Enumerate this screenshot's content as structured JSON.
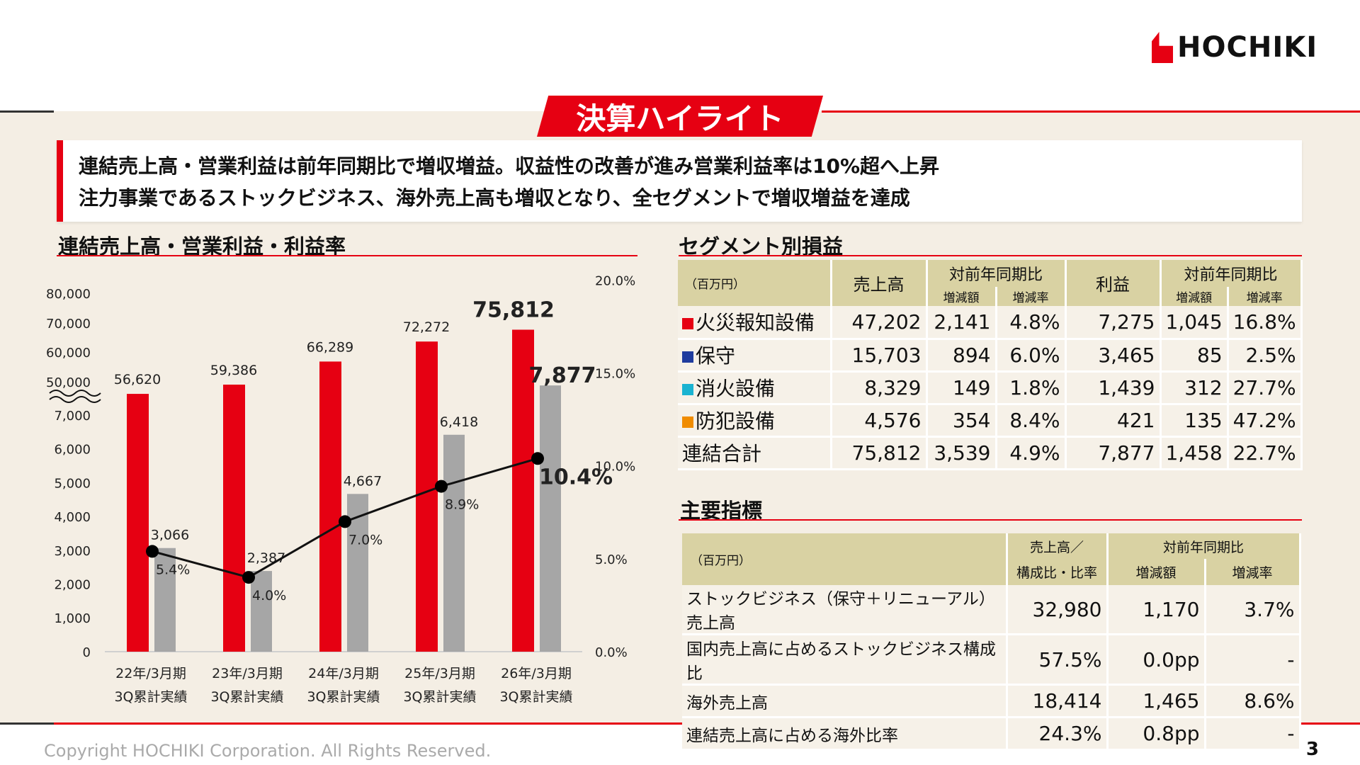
{
  "logo": {
    "text": "HOCHIKI"
  },
  "banner": {
    "title": "決算ハイライト"
  },
  "message": {
    "line1": "連結売上高・営業利益は前年同期比で増収増益。収益性の改善が進み営業利益率は10%超へ上昇",
    "line2": "注力事業であるストックビジネス、海外売上高も増収となり、全セグメントで増収増益を達成"
  },
  "chart_section": {
    "title": "連結売上高・営業利益・利益率"
  },
  "segment_section": {
    "title": "セグメント別損益"
  },
  "kpi_section": {
    "title": "主要指標"
  },
  "colors": {
    "red": "#e60012",
    "gray": "#a6a6a6",
    "line": "#111111",
    "header": "#d9d2a3",
    "bg": "#f4eee4"
  },
  "chart_data": {
    "type": "bar+line",
    "categories": [
      [
        "22年/3月期",
        "3Q累計実績"
      ],
      [
        "23年/3月期",
        "3Q累計実績"
      ],
      [
        "24年/3月期",
        "3Q累計実績"
      ],
      [
        "25年/3月期",
        "3Q累計実績"
      ],
      [
        "26年/3月期",
        "3Q累計実績"
      ]
    ],
    "series": [
      {
        "kind": "bar",
        "axis": "left-upper",
        "color": "#e60012",
        "values": [
          56620,
          59386,
          66289,
          72272,
          75812
        ],
        "labels": [
          "56,620",
          "59,386",
          "66,289",
          "72,272",
          "75,812"
        ]
      },
      {
        "kind": "bar",
        "axis": "left-lower",
        "color": "#a6a6a6",
        "values": [
          3066,
          2387,
          4667,
          6418,
          7877
        ],
        "labels": [
          "3,066",
          "2,387",
          "4,667",
          "6,418",
          "7,877"
        ]
      },
      {
        "kind": "line",
        "axis": "right",
        "color": "#111111",
        "values": [
          5.4,
          4.0,
          7.0,
          8.9,
          10.4
        ],
        "labels": [
          "5.4%",
          "4.0%",
          "7.0%",
          "8.9%",
          "10.4%"
        ]
      }
    ],
    "left_axis_upper_ticks": [
      "80,000",
      "70,000",
      "60,000",
      "50,000"
    ],
    "left_axis_lower_ticks": [
      "7,000",
      "6,000",
      "5,000",
      "4,000",
      "3,000",
      "2,000",
      "1,000",
      "0"
    ],
    "right_axis_ticks": [
      "20.0%",
      "15.0%",
      "10.0%",
      "5.0%",
      "0.0%"
    ],
    "left_axis_break": true,
    "ylim_lower": [
      0,
      7000
    ],
    "ylim_right": [
      0,
      20
    ],
    "grid": false
  },
  "segment_table": {
    "unit": "（百万円）",
    "headers": {
      "sales": "売上高",
      "yoy": "対前年同期比",
      "diff": "増減額",
      "rate": "増減率",
      "profit": "利益"
    },
    "rows": [
      {
        "name": "火災報知設備",
        "color": "#e60012",
        "cells": [
          "47,202",
          "2,141",
          "4.8%",
          "7,275",
          "1,045",
          "16.8%"
        ]
      },
      {
        "name": "保守",
        "color": "#1f3c9e",
        "cells": [
          "15,703",
          "894",
          "6.0%",
          "3,465",
          "85",
          "2.5%"
        ]
      },
      {
        "name": "消火設備",
        "color": "#1ab3d1",
        "cells": [
          "8,329",
          "149",
          "1.8%",
          "1,439",
          "312",
          "27.7%"
        ]
      },
      {
        "name": "防犯設備",
        "color": "#f08c00",
        "cells": [
          "4,576",
          "354",
          "8.4%",
          "421",
          "135",
          "47.2%"
        ]
      },
      {
        "name": "連結合計",
        "color": null,
        "cells": [
          "75,812",
          "3,539",
          "4.9%",
          "7,877",
          "1,458",
          "22.7%"
        ]
      }
    ]
  },
  "kpi_table": {
    "unit": "（百万円）",
    "headers": {
      "col1a": "売上高／",
      "col1b": "構成比・比率",
      "yoy": "対前年同期比",
      "diff": "増減額",
      "rate": "増減率"
    },
    "rows": [
      {
        "name": "ストックビジネス（保守＋リニューアル）売上高",
        "cells": [
          "32,980",
          "1,170",
          "3.7%"
        ]
      },
      {
        "name": "国内売上高に占めるストックビジネス構成比",
        "cells": [
          "57.5%",
          "0.0pp",
          "-"
        ]
      },
      {
        "name": "海外売上高",
        "cells": [
          "18,414",
          "1,465",
          "8.6%"
        ]
      },
      {
        "name": "連結売上高に占める海外比率",
        "cells": [
          "24.3%",
          "0.8pp",
          "-"
        ]
      }
    ]
  },
  "footer": {
    "copyright": "Copyright HOCHIKI Corporation. All Rights Reserved.",
    "page": "3"
  }
}
